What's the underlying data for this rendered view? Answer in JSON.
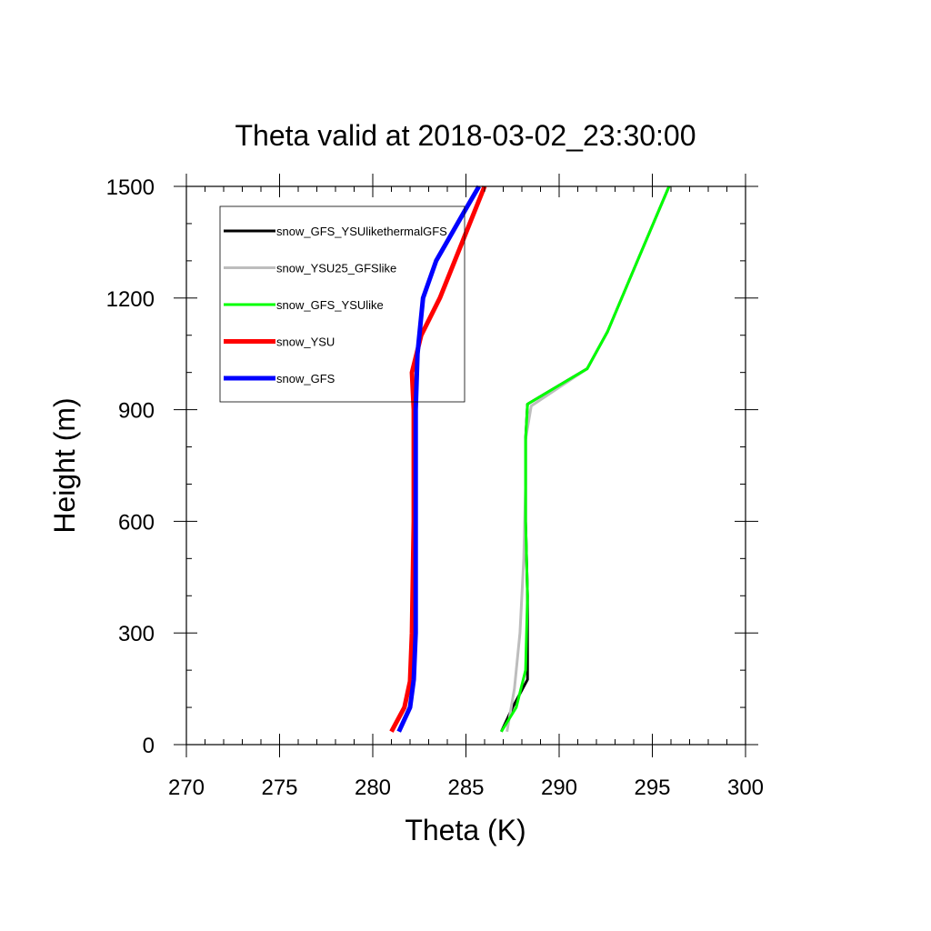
{
  "chart_data": {
    "type": "line",
    "title": "Theta valid at 2018-03-02_23:30:00",
    "xlabel": "Theta (K)",
    "ylabel": "Height (m)",
    "xlim": [
      270,
      300
    ],
    "ylim": [
      0,
      1500
    ],
    "xticks": [
      "270",
      "275",
      "280",
      "285",
      "290",
      "295",
      "300"
    ],
    "yticks": [
      "0",
      "300",
      "600",
      "900",
      "1200",
      "1500"
    ],
    "x_minor_step": 1,
    "y_minor_step": 100,
    "grid": false,
    "legend_position": "top-left",
    "series": [
      {
        "name": "snow_GFS_YSUlikethermalGFS",
        "color": "#000000",
        "points": [
          [
            286.9,
            35
          ],
          [
            287.5,
            100
          ],
          [
            288.3,
            175
          ],
          [
            288.3,
            400
          ],
          [
            288.2,
            600
          ],
          [
            288.2,
            820
          ],
          [
            288.3,
            915
          ],
          [
            291.5,
            1010
          ],
          [
            292.6,
            1110
          ],
          [
            294.2,
            1300
          ],
          [
            295.9,
            1500
          ]
        ]
      },
      {
        "name": "snow_YSU25_GFSlike",
        "color": "#bdbdbd",
        "points": [
          [
            287.2,
            35
          ],
          [
            287.6,
            150
          ],
          [
            287.9,
            300
          ],
          [
            288.1,
            500
          ],
          [
            288.2,
            700
          ],
          [
            288.2,
            820
          ],
          [
            288.5,
            910
          ],
          [
            291.5,
            1010
          ],
          [
            292.6,
            1110
          ],
          [
            294.2,
            1300
          ],
          [
            295.9,
            1500
          ]
        ]
      },
      {
        "name": "snow_GFS_YSUlike",
        "color": "#00ff00",
        "points": [
          [
            286.9,
            35
          ],
          [
            287.7,
            100
          ],
          [
            288.2,
            200
          ],
          [
            288.3,
            400
          ],
          [
            288.2,
            600
          ],
          [
            288.2,
            820
          ],
          [
            288.3,
            915
          ],
          [
            291.5,
            1010
          ],
          [
            292.6,
            1110
          ],
          [
            294.2,
            1300
          ],
          [
            295.9,
            1500
          ]
        ]
      },
      {
        "name": "snow_YSU",
        "color": "#ff0000",
        "points": [
          [
            281.0,
            35
          ],
          [
            281.7,
            100
          ],
          [
            282.0,
            170
          ],
          [
            282.1,
            300
          ],
          [
            282.2,
            600
          ],
          [
            282.2,
            900
          ],
          [
            282.1,
            1000
          ],
          [
            282.6,
            1100
          ],
          [
            283.6,
            1200
          ],
          [
            284.8,
            1350
          ],
          [
            286.0,
            1500
          ]
        ]
      },
      {
        "name": "snow_GFS",
        "color": "#0000ff",
        "points": [
          [
            281.4,
            35
          ],
          [
            282.0,
            100
          ],
          [
            282.2,
            175
          ],
          [
            282.3,
            300
          ],
          [
            282.3,
            600
          ],
          [
            282.3,
            900
          ],
          [
            282.4,
            1050
          ],
          [
            282.7,
            1200
          ],
          [
            283.4,
            1300
          ],
          [
            285.0,
            1440
          ],
          [
            285.7,
            1500
          ]
        ]
      }
    ]
  }
}
